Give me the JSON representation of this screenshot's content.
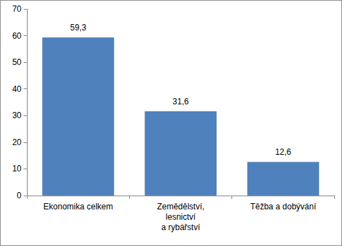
{
  "chart_data": {
    "type": "bar",
    "categories": [
      "Ekonomika celkem",
      "Zemědělství,\nlesnictví\na rybářství",
      "Těžba a dobývání"
    ],
    "values": [
      59.3,
      31.6,
      12.6
    ],
    "value_labels": [
      "59,3",
      "31,6",
      "12,6"
    ],
    "data_labels": true,
    "color": "#4f81bd",
    "ylim": [
      0,
      70
    ],
    "yticks": [
      0,
      10,
      20,
      30,
      40,
      50,
      60,
      70
    ],
    "grid": false
  }
}
